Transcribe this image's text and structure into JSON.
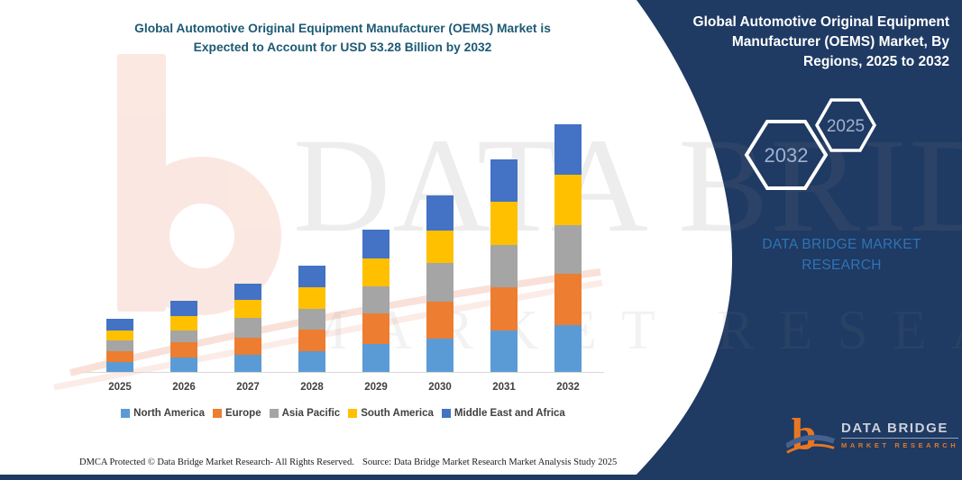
{
  "header": {
    "title_line1": "Global Automotive Original Equipment Manufacturer (OEMS) Market is",
    "title_line2": "Expected to Account for USD 53.28 Billion by 2032"
  },
  "panel": {
    "title_lines": [
      "Global Automotive Original Equipment",
      "Manufacturer (OEMS) Market, By",
      "Regions, 2025 to 2032"
    ],
    "hex_back": {
      "label": "2032"
    },
    "hex_front": {
      "label": "2025"
    },
    "brand": {
      "line1": "DATA BRIDGE MARKET",
      "line2": "RESEARCH"
    }
  },
  "watermark": {
    "line1": "DATA BRIDGE",
    "line2": "MARKET RESEARCH"
  },
  "logo": {
    "name": "DATA BRIDGE",
    "tagline": "MARKET RESEARCH",
    "icon": "data-bridge-b-icon"
  },
  "footer": {
    "dmca": "DMCA Protected © Data Bridge Market Research-  All Rights Reserved.",
    "source": "Source: Data Bridge Market Research  Market Analysis Study 2025"
  },
  "colors": {
    "panel_navy": "#1f3a63",
    "title_blue": "#1d5a74",
    "brand_blue": "#2e74b5",
    "logo_orange": "#e87722",
    "axis_text": "#404040",
    "watermark_peach": "#fbe5de"
  },
  "chart_data": {
    "type": "bar",
    "stacked": true,
    "title": "Global Automotive Original Equipment Manufacturer (OEMS) Market, By Regions, 2025 to 2032",
    "unit": "USD Billion",
    "annotation": "Expected to account for USD 53.28 Billion by 2032",
    "categories": [
      "2025",
      "2026",
      "2027",
      "2028",
      "2029",
      "2030",
      "2031",
      "2032"
    ],
    "series": [
      {
        "name": "North America",
        "color": "#5B9BD5",
        "values": [
          2.1,
          3.1,
          3.7,
          4.5,
          6.0,
          7.2,
          8.9,
          10.1
        ]
      },
      {
        "name": "Europe",
        "color": "#ED7D31",
        "values": [
          2.3,
          3.3,
          3.7,
          4.6,
          6.6,
          7.9,
          9.3,
          11.0
        ]
      },
      {
        "name": "Asia Pacific",
        "color": "#A5A5A5",
        "values": [
          2.3,
          2.5,
          4.3,
          4.5,
          5.8,
          8.3,
          9.1,
          10.5
        ]
      },
      {
        "name": "South America",
        "color": "#FFC000",
        "values": [
          2.1,
          3.1,
          3.9,
          4.6,
          6.0,
          7.0,
          9.3,
          10.8
        ]
      },
      {
        "name": "Middle East and Africa",
        "color": "#4472C4",
        "values": [
          2.5,
          3.3,
          3.5,
          4.6,
          6.2,
          7.6,
          9.1,
          10.88
        ]
      }
    ],
    "totals_estimated": [
      11.3,
      15.3,
      19.1,
      22.8,
      30.6,
      38.0,
      45.7,
      53.28
    ],
    "ylim": [
      0,
      55
    ],
    "grid": false,
    "legend_position": "bottom"
  }
}
